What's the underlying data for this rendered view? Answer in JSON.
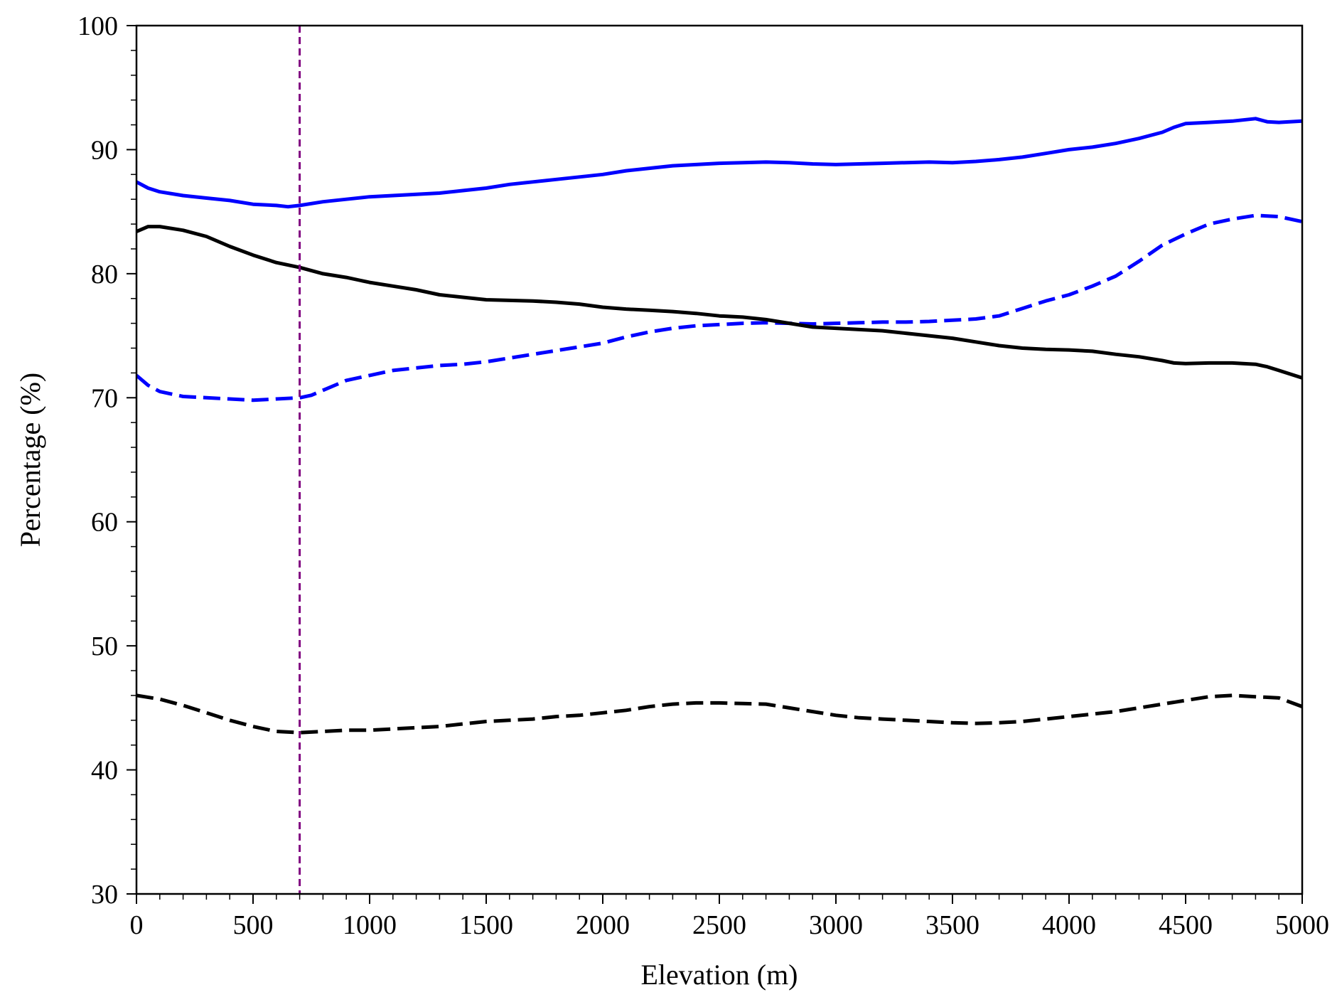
{
  "chart_data": {
    "type": "line",
    "title": "",
    "xlabel": "Elevation (m)",
    "ylabel": "Percentage (%)",
    "xlim": [
      0,
      5000
    ],
    "ylim": [
      30,
      100
    ],
    "xticks": [
      0,
      500,
      1000,
      1500,
      2000,
      2500,
      3000,
      3500,
      4000,
      4500,
      5000
    ],
    "yticks": [
      30,
      40,
      50,
      60,
      70,
      80,
      90,
      100
    ],
    "x_minor_step": 100,
    "y_minor_step": 2,
    "grid": false,
    "legend": "none",
    "reference_line": {
      "x": 700,
      "color": "#800080",
      "style": "dashed"
    },
    "series": [
      {
        "color": "#0000ff",
        "style": "solid",
        "x": [
          0,
          50,
          100,
          200,
          300,
          400,
          500,
          600,
          650,
          700,
          800,
          900,
          1000,
          1100,
          1200,
          1300,
          1400,
          1500,
          1600,
          1700,
          1800,
          1900,
          2000,
          2100,
          2200,
          2300,
          2400,
          2500,
          2600,
          2700,
          2800,
          2900,
          3000,
          3100,
          3200,
          3300,
          3400,
          3500,
          3600,
          3700,
          3800,
          3900,
          4000,
          4100,
          4200,
          4300,
          4400,
          4450,
          4500,
          4600,
          4700,
          4800,
          4850,
          4900,
          5000
        ],
        "y": [
          87.4,
          86.9,
          86.6,
          86.3,
          86.1,
          85.9,
          85.6,
          85.5,
          85.4,
          85.5,
          85.8,
          86.0,
          86.2,
          86.3,
          86.4,
          86.5,
          86.7,
          86.9,
          87.2,
          87.4,
          87.6,
          87.8,
          88.0,
          88.3,
          88.5,
          88.7,
          88.8,
          88.9,
          88.95,
          89.0,
          88.95,
          88.85,
          88.8,
          88.85,
          88.9,
          88.95,
          89.0,
          88.95,
          89.05,
          89.2,
          89.4,
          89.7,
          90.0,
          90.2,
          90.5,
          90.9,
          91.4,
          91.8,
          92.1,
          92.2,
          92.3,
          92.5,
          92.25,
          92.2,
          92.3
        ]
      },
      {
        "color": "#0000ff",
        "style": "dashed",
        "x": [
          0,
          50,
          100,
          200,
          300,
          400,
          500,
          600,
          700,
          750,
          800,
          900,
          1000,
          1100,
          1200,
          1300,
          1400,
          1500,
          1600,
          1700,
          1800,
          1900,
          2000,
          2100,
          2200,
          2300,
          2400,
          2500,
          2600,
          2700,
          2800,
          2900,
          3000,
          3100,
          3200,
          3300,
          3400,
          3500,
          3600,
          3700,
          3800,
          3900,
          4000,
          4100,
          4200,
          4300,
          4400,
          4500,
          4600,
          4700,
          4800,
          4900,
          5000
        ],
        "y": [
          71.8,
          71.0,
          70.5,
          70.1,
          70.0,
          69.9,
          69.8,
          69.9,
          70.0,
          70.2,
          70.6,
          71.4,
          71.8,
          72.2,
          72.4,
          72.6,
          72.7,
          72.9,
          73.2,
          73.5,
          73.8,
          74.1,
          74.4,
          74.9,
          75.3,
          75.6,
          75.8,
          75.9,
          76.0,
          76.05,
          76.0,
          75.95,
          76.0,
          76.05,
          76.1,
          76.1,
          76.15,
          76.25,
          76.35,
          76.6,
          77.2,
          77.8,
          78.3,
          79.0,
          79.8,
          81.0,
          82.3,
          83.2,
          84.0,
          84.4,
          84.7,
          84.6,
          84.2
        ]
      },
      {
        "color": "#000000",
        "style": "solid",
        "x": [
          0,
          50,
          100,
          200,
          300,
          400,
          500,
          600,
          700,
          800,
          900,
          1000,
          1100,
          1200,
          1300,
          1400,
          1500,
          1600,
          1700,
          1800,
          1900,
          2000,
          2100,
          2200,
          2300,
          2400,
          2500,
          2600,
          2700,
          2800,
          2900,
          3000,
          3100,
          3200,
          3300,
          3400,
          3500,
          3600,
          3700,
          3800,
          3900,
          4000,
          4100,
          4200,
          4300,
          4400,
          4450,
          4500,
          4600,
          4700,
          4800,
          4850,
          4900,
          5000
        ],
        "y": [
          83.4,
          83.8,
          83.8,
          83.5,
          83.0,
          82.2,
          81.5,
          80.9,
          80.5,
          80.0,
          79.7,
          79.3,
          79.0,
          78.7,
          78.3,
          78.1,
          77.9,
          77.85,
          77.8,
          77.7,
          77.55,
          77.3,
          77.15,
          77.05,
          76.95,
          76.8,
          76.6,
          76.5,
          76.3,
          76.0,
          75.7,
          75.6,
          75.5,
          75.4,
          75.2,
          75.0,
          74.8,
          74.5,
          74.2,
          74.0,
          73.9,
          73.85,
          73.75,
          73.5,
          73.3,
          73.0,
          72.8,
          72.75,
          72.8,
          72.8,
          72.7,
          72.5,
          72.2,
          71.6
        ]
      },
      {
        "color": "#000000",
        "style": "dashed",
        "x": [
          0,
          100,
          200,
          300,
          400,
          500,
          600,
          700,
          800,
          900,
          1000,
          1100,
          1200,
          1300,
          1400,
          1500,
          1600,
          1700,
          1800,
          1900,
          2000,
          2100,
          2200,
          2300,
          2400,
          2500,
          2600,
          2700,
          2800,
          2900,
          3000,
          3100,
          3200,
          3300,
          3400,
          3500,
          3600,
          3700,
          3800,
          3900,
          4000,
          4100,
          4200,
          4300,
          4400,
          4500,
          4600,
          4700,
          4800,
          4900,
          5000
        ],
        "y": [
          46.0,
          45.7,
          45.2,
          44.6,
          44.0,
          43.5,
          43.1,
          43.0,
          43.1,
          43.2,
          43.2,
          43.3,
          43.4,
          43.5,
          43.7,
          43.9,
          44.0,
          44.1,
          44.3,
          44.4,
          44.6,
          44.8,
          45.1,
          45.3,
          45.4,
          45.4,
          45.35,
          45.3,
          45.0,
          44.7,
          44.4,
          44.2,
          44.1,
          44.0,
          43.9,
          43.8,
          43.75,
          43.8,
          43.9,
          44.1,
          44.3,
          44.5,
          44.7,
          45.0,
          45.3,
          45.6,
          45.9,
          46.0,
          45.9,
          45.8,
          45.1
        ]
      }
    ]
  }
}
